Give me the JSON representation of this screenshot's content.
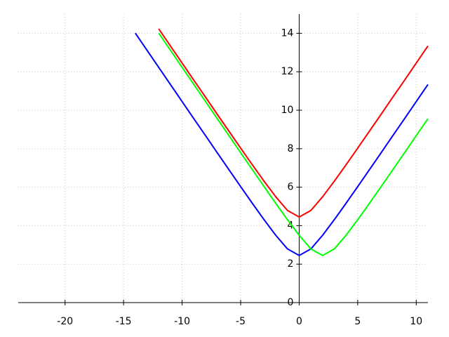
{
  "chart_data": {
    "type": "line",
    "x": [
      -14,
      -13,
      -12,
      -11,
      -10,
      -9,
      -8,
      -7,
      -6,
      -5,
      -4,
      -3,
      -2,
      -1,
      0,
      1,
      2,
      3,
      4,
      5,
      6,
      7,
      8,
      9,
      10,
      11
    ],
    "series": [
      {
        "color": "#ff0000",
        "values": [
          null,
          null,
          14.23,
          13.34,
          12.45,
          11.56,
          10.68,
          9.79,
          8.91,
          8.03,
          7.16,
          6.31,
          5.5,
          4.79,
          4.45,
          4.79,
          5.5,
          6.31,
          7.16,
          8.03,
          8.91,
          9.79,
          10.68,
          11.56,
          12.45,
          13.34
        ]
      },
      {
        "color": "#0000ff",
        "values": [
          14.01,
          13.12,
          12.23,
          11.34,
          10.45,
          9.56,
          8.68,
          7.79,
          6.91,
          6.03,
          5.16,
          4.31,
          3.5,
          2.79,
          2.45,
          2.79,
          3.5,
          4.31,
          5.16,
          6.03,
          6.91,
          7.79,
          8.68,
          9.56,
          10.45,
          11.34
        ]
      },
      {
        "color": "#00ff00",
        "values": [
          null,
          null,
          14.01,
          13.12,
          12.23,
          11.34,
          10.45,
          9.56,
          8.68,
          7.79,
          6.91,
          6.03,
          5.16,
          4.31,
          3.5,
          2.79,
          2.45,
          2.79,
          3.5,
          4.31,
          5.16,
          6.03,
          6.91,
          7.79,
          8.68,
          9.56
        ]
      }
    ],
    "xlim": [
      -24,
      11
    ],
    "ylim": [
      0,
      15
    ],
    "xticks": [
      -20,
      -15,
      -10,
      -5,
      0,
      5,
      10
    ],
    "yticks": [
      0,
      2,
      4,
      6,
      8,
      10,
      12,
      14
    ],
    "grid": true
  }
}
